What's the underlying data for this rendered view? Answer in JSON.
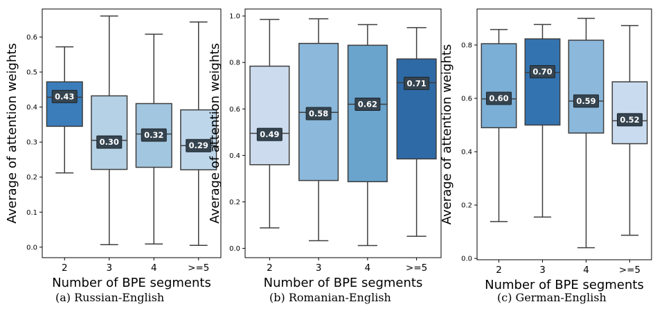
{
  "chart_data": [
    {
      "type": "box",
      "subplot_label": "(a) Russian-English",
      "xlabel": "Number of BPE segments",
      "ylabel": "Average of attention weights",
      "categories": [
        "2",
        "3",
        "4",
        ">=5"
      ],
      "ylim": [
        -0.03,
        0.68
      ],
      "yticks": [
        0.0,
        0.1,
        0.2,
        0.3,
        0.4,
        0.5,
        0.6
      ],
      "ytick_labels": [
        "0.0",
        "0.1",
        "0.2",
        "0.3",
        "0.4",
        "0.5",
        "0.6"
      ],
      "boxes": [
        {
          "category": "2",
          "whislo": 0.212,
          "q1": 0.345,
          "med": 0.428,
          "q3": 0.472,
          "whishi": 0.572,
          "mean": 0.43,
          "label": "0.43",
          "color": "#3a7dba"
        },
        {
          "category": "3",
          "whislo": 0.007,
          "q1": 0.222,
          "med": 0.305,
          "q3": 0.432,
          "whishi": 0.66,
          "mean": 0.3,
          "label": "0.30",
          "color": "#b5d1e6"
        },
        {
          "category": "4",
          "whislo": 0.009,
          "q1": 0.228,
          "med": 0.323,
          "q3": 0.41,
          "whishi": 0.608,
          "mean": 0.32,
          "label": "0.32",
          "color": "#a2c6df"
        },
        {
          "category": ">=5",
          "whislo": 0.005,
          "q1": 0.221,
          "med": 0.29,
          "q3": 0.392,
          "whishi": 0.643,
          "mean": 0.29,
          "label": "0.29",
          "color": "#bed6ea"
        }
      ]
    },
    {
      "type": "box",
      "subplot_label": "(b) Romanian-English",
      "xlabel": "Number of BPE segments",
      "ylabel": "Average of attention weights",
      "categories": [
        "2",
        "3",
        "4",
        ">=5"
      ],
      "ylim": [
        -0.04,
        1.03
      ],
      "yticks": [
        0.0,
        0.2,
        0.4,
        0.6,
        0.8,
        1.0
      ],
      "ytick_labels": [
        "0.0",
        "0.2",
        "0.4",
        "0.6",
        "0.8",
        "1.0"
      ],
      "boxes": [
        {
          "category": "2",
          "whislo": 0.088,
          "q1": 0.36,
          "med": 0.495,
          "q3": 0.784,
          "whishi": 0.985,
          "mean": 0.49,
          "label": "0.49",
          "color": "#ccdcee"
        },
        {
          "category": "3",
          "whislo": 0.033,
          "q1": 0.292,
          "med": 0.585,
          "q3": 0.882,
          "whishi": 0.988,
          "mean": 0.58,
          "label": "0.58",
          "color": "#8bb8db"
        },
        {
          "category": "4",
          "whislo": 0.012,
          "q1": 0.287,
          "med": 0.62,
          "q3": 0.874,
          "whishi": 0.963,
          "mean": 0.62,
          "label": "0.62",
          "color": "#6aa3cc"
        },
        {
          "category": ">=5",
          "whislo": 0.052,
          "q1": 0.385,
          "med": 0.713,
          "q3": 0.815,
          "whishi": 0.95,
          "mean": 0.71,
          "label": "0.71",
          "color": "#2e6aa6"
        }
      ]
    },
    {
      "type": "box",
      "subplot_label": "(c) German-English",
      "xlabel": "Number of BPE segments",
      "ylabel": "Average of attention weights",
      "categories": [
        "2",
        "3",
        "4",
        ">=5"
      ],
      "ylim": [
        -0.005,
        0.935
      ],
      "yticks": [
        0.0,
        0.2,
        0.4,
        0.6,
        0.8
      ],
      "ytick_labels": [
        "0.0",
        "0.2",
        "0.4",
        "0.6",
        "0.8"
      ],
      "boxes": [
        {
          "category": "2",
          "whislo": 0.138,
          "q1": 0.49,
          "med": 0.598,
          "q3": 0.805,
          "whishi": 0.858,
          "mean": 0.6,
          "label": "0.60",
          "color": "#7cafd6"
        },
        {
          "category": "3",
          "whislo": 0.155,
          "q1": 0.5,
          "med": 0.697,
          "q3": 0.823,
          "whishi": 0.877,
          "mean": 0.7,
          "label": "0.70",
          "color": "#3373b0"
        },
        {
          "category": "4",
          "whislo": 0.04,
          "q1": 0.47,
          "med": 0.59,
          "q3": 0.818,
          "whishi": 0.9,
          "mean": 0.59,
          "label": "0.59",
          "color": "#8bb8db"
        },
        {
          "category": ">=5",
          "whislo": 0.087,
          "q1": 0.43,
          "med": 0.516,
          "q3": 0.662,
          "whishi": 0.873,
          "mean": 0.52,
          "label": "0.52",
          "color": "#c9dbee"
        }
      ]
    }
  ]
}
